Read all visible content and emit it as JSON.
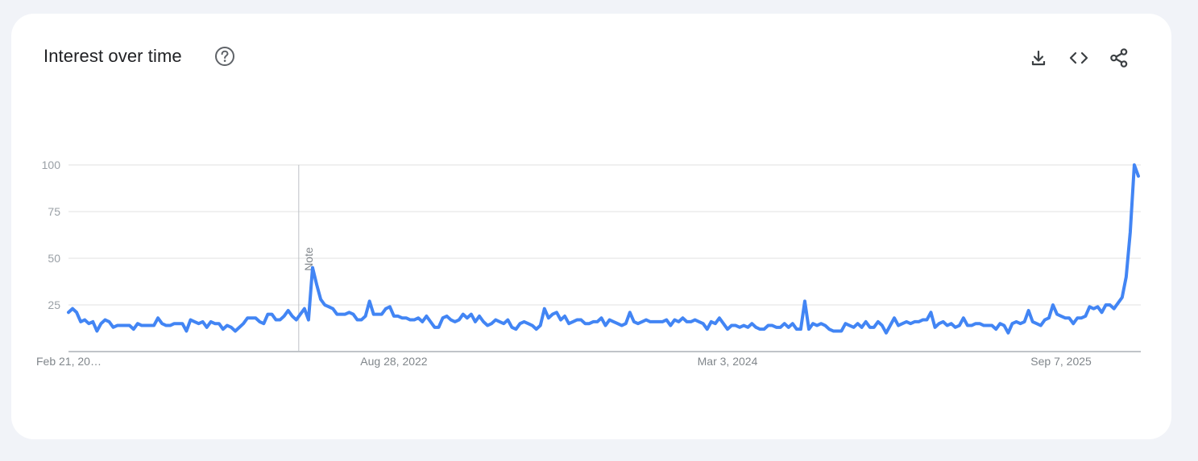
{
  "card": {
    "title": "Interest over time",
    "actions": [
      {
        "name": "download-icon"
      },
      {
        "name": "embed-icon"
      },
      {
        "name": "share-icon"
      }
    ]
  },
  "chart_data": {
    "type": "line",
    "title": "Interest over time",
    "xlabel": "",
    "ylabel": "",
    "ylim": [
      0,
      100
    ],
    "y_ticks": [
      25,
      50,
      75,
      100
    ],
    "x_tick_labels": [
      "Feb 21, 20…",
      "Aug 28, 2022",
      "Mar 3, 2024",
      "Sep 7, 2025"
    ],
    "x_start_label": "Feb 21, 20…",
    "grid": true,
    "color": "#4285f4",
    "annotation": {
      "text": "Note",
      "at_index": 57
    },
    "series": [
      {
        "values": [
          21,
          23,
          21,
          16,
          17,
          15,
          16,
          11,
          15,
          17,
          16,
          13,
          14,
          14,
          14,
          14,
          12,
          15,
          14,
          14,
          14,
          14,
          18,
          15,
          14,
          14,
          15,
          15,
          15,
          11,
          17,
          16,
          15,
          16,
          13,
          16,
          15,
          15,
          12,
          14,
          13,
          11,
          13,
          15,
          18,
          18,
          18,
          16,
          15,
          20,
          20,
          17,
          17,
          19,
          22,
          19,
          17,
          20,
          23,
          17,
          45,
          36,
          28,
          25,
          24,
          23,
          20,
          20,
          20,
          21,
          20,
          17,
          17,
          19,
          27,
          20,
          20,
          20,
          23,
          24,
          19,
          19,
          18,
          18,
          17,
          17,
          18,
          16,
          19,
          16,
          13,
          13,
          18,
          19,
          17,
          16,
          17,
          20,
          18,
          20,
          16,
          19,
          16,
          14,
          15,
          17,
          16,
          15,
          17,
          13,
          12,
          15,
          16,
          15,
          14,
          12,
          14,
          23,
          18,
          20,
          21,
          17,
          19,
          15,
          16,
          17,
          17,
          15,
          15,
          16,
          16,
          18,
          14,
          17,
          16,
          15,
          14,
          15,
          21,
          16,
          15,
          16,
          17,
          16,
          16,
          16,
          16,
          17,
          14,
          17,
          16,
          18,
          16,
          16,
          17,
          16,
          15,
          12,
          16,
          15,
          18,
          15,
          12,
          14,
          14,
          13,
          14,
          13,
          15,
          13,
          12,
          12,
          14,
          14,
          13,
          13,
          15,
          13,
          15,
          12,
          12,
          27,
          12,
          15,
          14,
          15,
          14,
          12,
          11,
          11,
          11,
          15,
          14,
          13,
          15,
          13,
          16,
          13,
          13,
          16,
          14,
          10,
          14,
          18,
          14,
          15,
          16,
          15,
          16,
          16,
          17,
          17,
          21,
          13,
          15,
          16,
          14,
          15,
          13,
          14,
          18,
          14,
          14,
          15,
          15,
          14,
          14,
          14,
          12,
          15,
          14,
          10,
          15,
          16,
          15,
          16,
          22,
          16,
          15,
          14,
          17,
          18,
          25,
          20,
          19,
          18,
          18,
          15,
          18,
          18,
          19,
          24,
          23,
          24,
          21,
          25,
          25,
          23,
          26,
          29,
          40,
          64,
          100,
          94
        ]
      }
    ]
  }
}
